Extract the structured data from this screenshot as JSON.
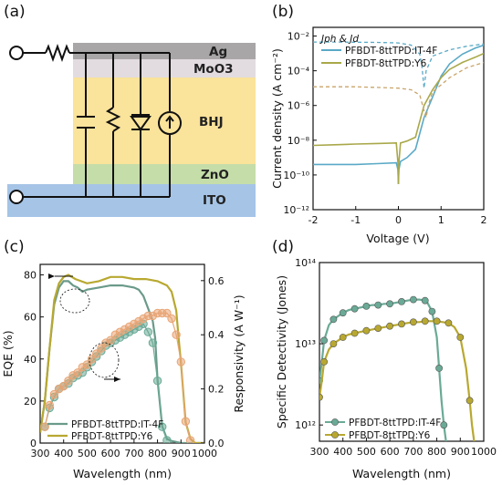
{
  "panels": {
    "a": {
      "label": "(a)",
      "layers": [
        {
          "name": "Ag",
          "color": "#a8a6a6"
        },
        {
          "name": "MoO3",
          "color": "#e2dbe0"
        },
        {
          "name": "BHJ",
          "color": "#fae39a"
        },
        {
          "name": "ZnO",
          "color": "#c5dda9"
        },
        {
          "name": "ITO",
          "color": "#a5c4e6"
        }
      ]
    },
    "b": {
      "label": "(b)"
    },
    "c": {
      "label": "(c)"
    },
    "d": {
      "label": "(d)"
    }
  },
  "chart_data": [
    {
      "type": "line",
      "panel": "b",
      "xlabel": "Voltage (V)",
      "ylabel": "Current density (A cm⁻²)",
      "annotation": "Jph & Jd",
      "xlim": [
        -2,
        2
      ],
      "ylim_log10": [
        -12,
        -1.5
      ],
      "yscale": "log",
      "xticks": [
        "-2",
        "-1",
        "0",
        "1",
        "2"
      ],
      "yticks": [
        "10⁻¹²",
        "10⁻¹⁰",
        "10⁻⁸",
        "10⁻⁶",
        "10⁻⁴",
        "10⁻²"
      ],
      "legend_position": "top-right",
      "series": [
        {
          "name": "PFBDT-8ttTPD:IT-4F",
          "color": "#5aa9c6",
          "kind": "dark",
          "x": [
            -2,
            -1.5,
            -1,
            -0.5,
            -0.05,
            -0.01,
            0,
            0.01,
            0.05,
            0.2,
            0.4,
            0.6,
            0.8,
            1.0,
            1.2,
            1.5,
            1.8,
            2.0
          ],
          "y": [
            4e-10,
            4e-10,
            4e-10,
            4.5e-10,
            5e-10,
            2e-10,
            3e-11,
            2e-10,
            6e-10,
            1e-09,
            3e-09,
            2e-07,
            3e-06,
            5e-05,
            0.00025,
            0.0009,
            0.002,
            0.003
          ]
        },
        {
          "name": "PFBDT-8ttTPD:IT-4F",
          "color": "#5aa9c6",
          "kind": "photo",
          "legend": false,
          "x": [
            -2,
            -1.5,
            -1,
            -0.5,
            0,
            0.3,
            0.5,
            0.55,
            0.6,
            0.65,
            0.8,
            1.2,
            1.6,
            2.0
          ],
          "y": [
            0.0045,
            0.0045,
            0.0044,
            0.0043,
            0.004,
            0.003,
            0.0009,
            0.0002,
            1e-05,
            0.0001,
            0.0007,
            0.0016,
            0.0026,
            0.0035
          ]
        },
        {
          "name": "PFBDT-8ttTPD:Y6",
          "color": "#a9a84a",
          "kind": "dark",
          "x": [
            -2,
            -1.5,
            -1,
            -0.5,
            -0.05,
            -0.01,
            0,
            0.01,
            0.05,
            0.2,
            0.4,
            0.6,
            0.8,
            1.0,
            1.2,
            1.5,
            1.8,
            2.0
          ],
          "y": [
            5e-09,
            5.5e-09,
            6e-09,
            6.5e-09,
            7e-09,
            5e-10,
            3e-11,
            5e-10,
            7e-09,
            9e-09,
            1.5e-08,
            1e-06,
            8e-06,
            4e-05,
            0.00012,
            0.0003,
            0.0006,
            0.001
          ]
        },
        {
          "name": "PFBDT-8ttTPD:Y6",
          "color": "#c9a46a",
          "kind": "photo",
          "legend": false,
          "x": [
            -2,
            -1.5,
            -1,
            -0.5,
            0,
            0.3,
            0.5,
            0.6,
            0.65,
            0.7,
            0.8,
            1.2,
            1.6,
            2.0
          ],
          "y": [
            1.2e-05,
            1.2e-05,
            1.2e-05,
            1.1e-05,
            1e-05,
            8e-06,
            4e-06,
            5e-07,
            2e-07,
            1e-06,
            6e-06,
            4e-05,
            0.00015,
            0.0003
          ]
        }
      ]
    },
    {
      "type": "line",
      "panel": "c",
      "xlabel": "Wavelength (nm)",
      "ylabel": "EQE (%)",
      "y2label": "Responsivity (A W⁻¹)",
      "xlim": [
        300,
        1000
      ],
      "ylim": [
        0,
        85
      ],
      "y2lim": [
        0,
        0.66
      ],
      "xticks": [
        "300",
        "400",
        "500",
        "600",
        "700",
        "800",
        "900",
        "1000"
      ],
      "yticks": [
        "0",
        "20",
        "40",
        "60",
        "80"
      ],
      "y2ticks": [
        "0.0",
        "0.2",
        "0.4",
        "0.6"
      ],
      "legend_position": "bottom-left",
      "series": [
        {
          "name": "PFBDT-8ttTPD:IT-4F",
          "color": "#6a9a8a",
          "kind": "eqe",
          "x": [
            300,
            320,
            340,
            360,
            380,
            400,
            420,
            440,
            460,
            480,
            500,
            550,
            600,
            650,
            700,
            720,
            740,
            760,
            780,
            790,
            800,
            820,
            840,
            860,
            900,
            1000
          ],
          "y": [
            5,
            20,
            45,
            66,
            74,
            77,
            77,
            75,
            74,
            72,
            73,
            74,
            75,
            75,
            74,
            73,
            70,
            64,
            58,
            50,
            30,
            8,
            2,
            1,
            0,
            0
          ]
        },
        {
          "name": "PFBDT-8ttTPD:Y6",
          "color": "#b8a830",
          "kind": "eqe",
          "x": [
            300,
            320,
            340,
            360,
            380,
            400,
            420,
            450,
            500,
            550,
            600,
            650,
            700,
            750,
            800,
            820,
            840,
            860,
            880,
            890,
            900,
            920,
            940,
            960,
            1000
          ],
          "y": [
            5,
            20,
            45,
            68,
            76,
            79,
            80,
            78,
            76,
            77,
            79,
            79,
            78,
            78,
            77,
            76,
            75,
            72,
            63,
            50,
            38,
            10,
            2,
            0,
            0
          ]
        },
        {
          "name": "PFBDT-8ttTPD:IT-4F",
          "color": "#6aaa96",
          "kind": "responsivity",
          "markers": true,
          "legend": false,
          "x": [
            320,
            340,
            360,
            380,
            400,
            420,
            440,
            460,
            480,
            500,
            520,
            540,
            560,
            580,
            600,
            620,
            640,
            660,
            680,
            700,
            720,
            740,
            760,
            780,
            800,
            820,
            840
          ],
          "y": [
            0.06,
            0.13,
            0.17,
            0.2,
            0.21,
            0.22,
            0.24,
            0.25,
            0.26,
            0.28,
            0.3,
            0.32,
            0.34,
            0.36,
            0.37,
            0.38,
            0.39,
            0.4,
            0.41,
            0.42,
            0.43,
            0.44,
            0.41,
            0.37,
            0.23,
            0.06,
            0.01
          ]
        },
        {
          "name": "PFBDT-8ttTPD:Y6",
          "color": "#e8a474",
          "kind": "responsivity",
          "markers": true,
          "legend": false,
          "x": [
            320,
            340,
            360,
            380,
            400,
            420,
            440,
            460,
            480,
            500,
            520,
            540,
            560,
            580,
            600,
            620,
            640,
            660,
            680,
            700,
            720,
            740,
            760,
            780,
            800,
            820,
            840,
            860,
            880,
            900,
            920,
            940
          ],
          "y": [
            0.06,
            0.14,
            0.18,
            0.2,
            0.21,
            0.23,
            0.25,
            0.26,
            0.28,
            0.29,
            0.31,
            0.33,
            0.35,
            0.37,
            0.38,
            0.4,
            0.41,
            0.42,
            0.43,
            0.44,
            0.45,
            0.46,
            0.47,
            0.47,
            0.48,
            0.48,
            0.48,
            0.46,
            0.4,
            0.3,
            0.08,
            0.01
          ]
        }
      ]
    },
    {
      "type": "line",
      "panel": "d",
      "xlabel": "Wavelength (nm)",
      "ylabel": "Specific Detectivity (Jones)",
      "yscale": "log",
      "xlim": [
        300,
        1000
      ],
      "ylim_log10": [
        11.8,
        14
      ],
      "xticks": [
        "300",
        "400",
        "500",
        "600",
        "700",
        "800",
        "900",
        "1000"
      ],
      "yticks": [
        "10¹²",
        "10¹³",
        "10¹⁴"
      ],
      "legend_position": "bottom-left",
      "series": [
        {
          "name": "PFBDT-8ttTPD:IT-4F",
          "color": "#6aaa96",
          "markers": true,
          "x": [
            300,
            310,
            320,
            340,
            360,
            380,
            400,
            425,
            450,
            475,
            500,
            525,
            550,
            575,
            600,
            625,
            650,
            675,
            700,
            725,
            750,
            760,
            780,
            800,
            810,
            820,
            830,
            840
          ],
          "y": [
            3500000000000.0,
            6000000000000.0,
            11000000000000.0,
            17000000000000.0,
            20000000000000.0,
            22000000000000.0,
            24000000000000.0,
            26000000000000.0,
            27000000000000.0,
            28000000000000.0,
            29000000000000.0,
            30000000000000.0,
            30000000000000.0,
            31000000000000.0,
            31000000000000.0,
            32000000000000.0,
            33000000000000.0,
            34000000000000.0,
            35000000000000.0,
            35000000000000.0,
            34000000000000.0,
            32000000000000.0,
            25000000000000.0,
            12000000000000.0,
            5000000000000.0,
            2000000000000.0,
            1000000000000.0,
            600000000000.0
          ]
        },
        {
          "name": "PFBDT-8ttTPD:Y6",
          "color": "#b8a830",
          "markers": true,
          "x": [
            300,
            310,
            320,
            340,
            360,
            380,
            400,
            425,
            450,
            475,
            500,
            525,
            550,
            575,
            600,
            625,
            650,
            675,
            700,
            725,
            750,
            775,
            800,
            825,
            850,
            875,
            900,
            925,
            940,
            950,
            960
          ],
          "y": [
            2200000000000.0,
            3500000000000.0,
            6000000000000.0,
            8500000000000.0,
            10000000000000.0,
            11000000000000.0,
            12000000000000.0,
            13000000000000.0,
            13500000000000.0,
            14000000000000.0,
            14500000000000.0,
            15000000000000.0,
            15500000000000.0,
            16000000000000.0,
            16500000000000.0,
            17000000000000.0,
            17500000000000.0,
            18000000000000.0,
            18500000000000.0,
            18500000000000.0,
            19000000000000.0,
            19000000000000.0,
            19000000000000.0,
            18500000000000.0,
            18000000000000.0,
            16000000000000.0,
            12000000000000.0,
            5000000000000.0,
            2000000000000.0,
            1000000000000.0,
            600000000000.0
          ]
        }
      ]
    }
  ]
}
